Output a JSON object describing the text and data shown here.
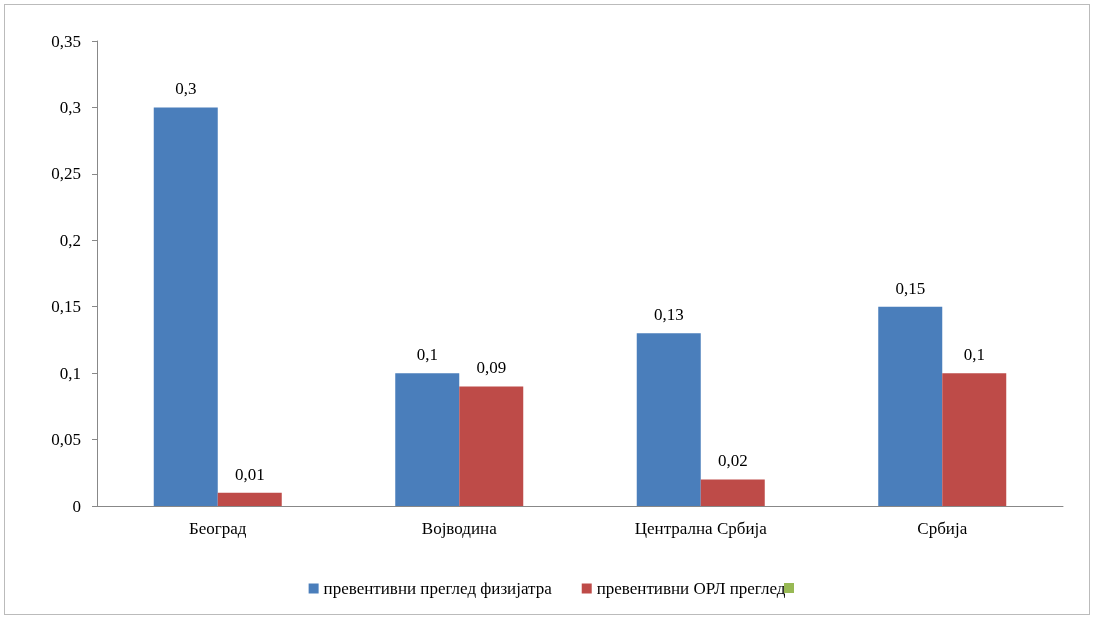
{
  "chart_data": {
    "type": "bar",
    "categories": [
      "Београд",
      "Војводина",
      "Централна Србија",
      "Србија"
    ],
    "series": [
      {
        "name": "превентивни преглед физијатра",
        "color": "#4a7ebb",
        "values": [
          0.3,
          0.1,
          0.13,
          0.15
        ],
        "value_labels": [
          "0,3",
          "0,1",
          "0,13",
          "0,15"
        ]
      },
      {
        "name": "превентивни ОРЛ преглед",
        "color": "#be4b48",
        "values": [
          0.01,
          0.09,
          0.02,
          0.1
        ],
        "value_labels": [
          "0,01",
          "0,09",
          "0,02",
          "0,1"
        ]
      }
    ],
    "ylim": [
      0,
      0.35
    ],
    "yticks": [
      {
        "value": 0,
        "label": "0"
      },
      {
        "value": 0.05,
        "label": "0,05"
      },
      {
        "value": 0.1,
        "label": "0,1"
      },
      {
        "value": 0.15,
        "label": "0,15"
      },
      {
        "value": 0.2,
        "label": "0,2"
      },
      {
        "value": 0.25,
        "label": "0,25"
      },
      {
        "value": 0.3,
        "label": "0,3"
      },
      {
        "value": 0.35,
        "label": "0,35"
      }
    ],
    "grid": false,
    "legend": "bottom"
  }
}
